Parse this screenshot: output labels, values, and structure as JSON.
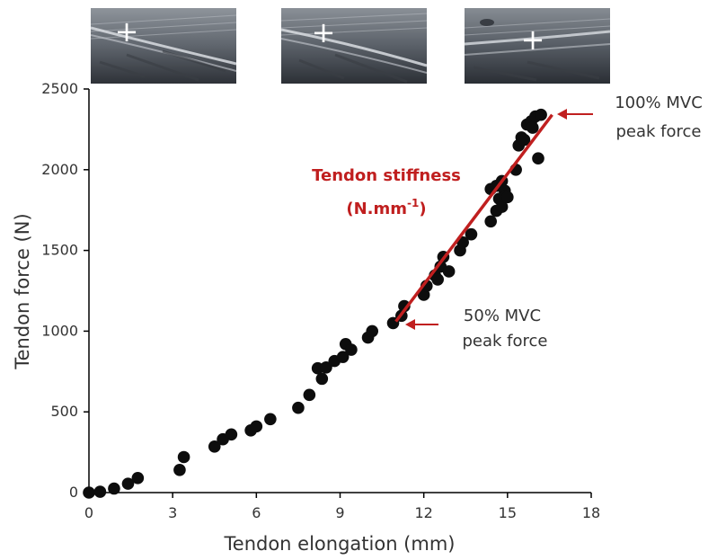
{
  "chart_data": {
    "type": "scatter",
    "xlabel": "Tendon elongation (mm)",
    "ylabel": "Tendon force (N)",
    "xlim": [
      0,
      18
    ],
    "ylim": [
      0,
      2500
    ],
    "x_ticks": [
      "0",
      "3",
      "6",
      "9",
      "12",
      "15",
      "18"
    ],
    "y_ticks": [
      "0",
      "500",
      "1000",
      "1500",
      "2000",
      "2500"
    ],
    "grid": false,
    "points": [
      [
        0.0,
        0
      ],
      [
        0.4,
        5
      ],
      [
        0.9,
        25
      ],
      [
        1.4,
        55
      ],
      [
        1.75,
        90
      ],
      [
        3.25,
        140
      ],
      [
        3.4,
        220
      ],
      [
        4.5,
        285
      ],
      [
        4.8,
        330
      ],
      [
        5.1,
        360
      ],
      [
        5.8,
        385
      ],
      [
        6.0,
        410
      ],
      [
        6.5,
        455
      ],
      [
        7.5,
        525
      ],
      [
        7.9,
        605
      ],
      [
        8.2,
        770
      ],
      [
        8.35,
        705
      ],
      [
        8.5,
        775
      ],
      [
        8.8,
        815
      ],
      [
        9.1,
        840
      ],
      [
        9.2,
        920
      ],
      [
        9.4,
        885
      ],
      [
        10.0,
        960
      ],
      [
        10.15,
        1000
      ],
      [
        10.9,
        1050
      ],
      [
        11.2,
        1095
      ],
      [
        11.3,
        1155
      ],
      [
        12.0,
        1225
      ],
      [
        12.1,
        1280
      ],
      [
        12.4,
        1345
      ],
      [
        12.5,
        1320
      ],
      [
        12.6,
        1400
      ],
      [
        12.7,
        1460
      ],
      [
        12.9,
        1370
      ],
      [
        13.3,
        1500
      ],
      [
        13.4,
        1550
      ],
      [
        13.7,
        1600
      ],
      [
        14.4,
        1680
      ],
      [
        14.4,
        1880
      ],
      [
        14.6,
        1745
      ],
      [
        14.6,
        1900
      ],
      [
        14.7,
        1820
      ],
      [
        14.8,
        1770
      ],
      [
        14.8,
        1930
      ],
      [
        14.9,
        1870
      ],
      [
        14.9,
        1835
      ],
      [
        15.0,
        1830
      ],
      [
        15.3,
        2000
      ],
      [
        15.4,
        2150
      ],
      [
        15.5,
        2200
      ],
      [
        15.6,
        2185
      ],
      [
        15.7,
        2280
      ],
      [
        15.85,
        2300
      ],
      [
        15.9,
        2260
      ],
      [
        16.0,
        2330
      ],
      [
        16.1,
        2070
      ],
      [
        16.2,
        2340
      ]
    ],
    "stiffness_line": {
      "x": [
        11.0,
        16.6
      ],
      "y": [
        1060,
        2340
      ]
    },
    "annotations": {
      "stiffness_title": "Tendon stiffness",
      "stiffness_unit_base": "(N.mm",
      "stiffness_unit_sup": "-1",
      "stiffness_unit_close": ")",
      "peak100_line1": "100% MVC",
      "peak100_line2": "peak force",
      "peak50_line1": "50% MVC",
      "peak50_line2": "peak force"
    },
    "colors": {
      "points": "#0d0d0d",
      "accent": "#c01f1f",
      "axis": "#000000",
      "text": "#333333"
    }
  },
  "ultrasound_images": [
    {
      "marker": "+"
    },
    {
      "marker": "+"
    },
    {
      "marker": "+"
    }
  ]
}
